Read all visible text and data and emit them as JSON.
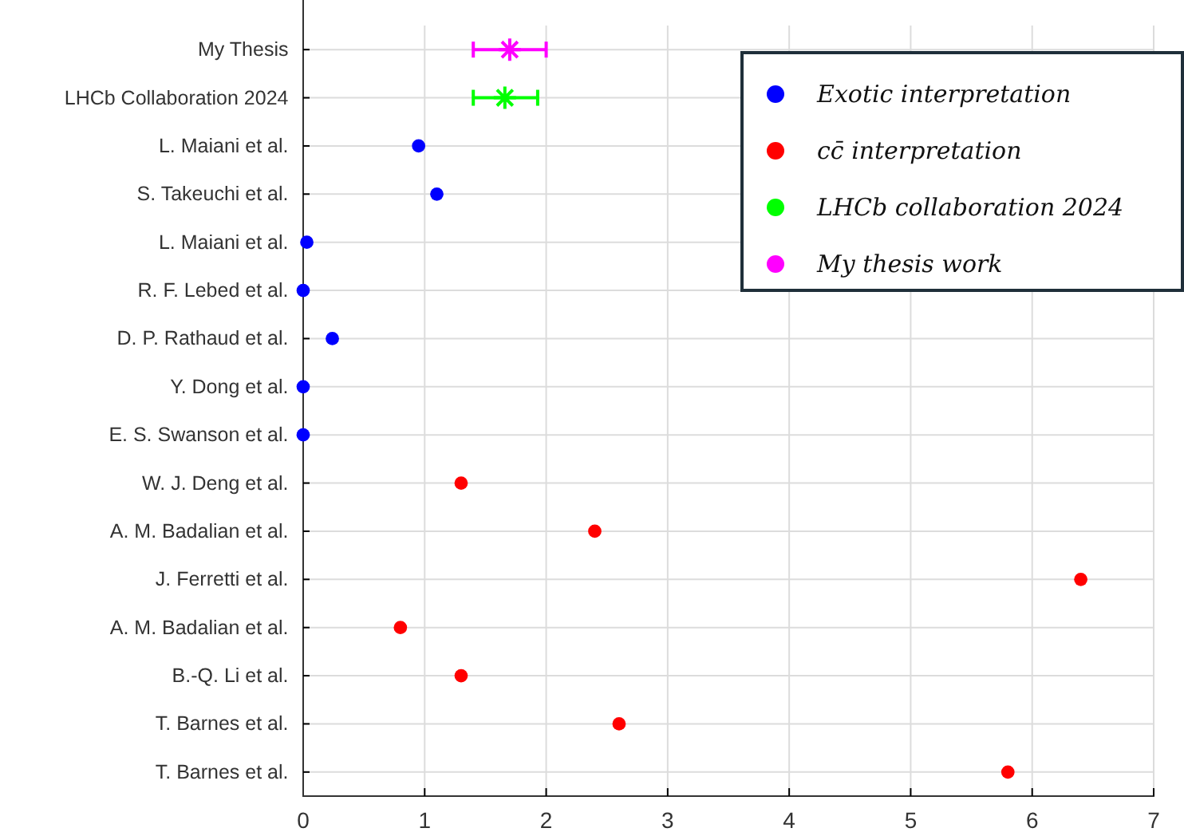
{
  "chart_data": {
    "type": "scatter",
    "orientation": "horizontal",
    "categories": [
      "My Thesis",
      "LHCb Collaboration 2024",
      "L. Maiani et al.",
      "S. Takeuchi et al.",
      "L. Maiani et al.",
      "R. F. Lebed et al.",
      "D. P. Rathaud et al.",
      "Y. Dong et al.",
      "E. S. Swanson et al.",
      "W. J. Deng et al.",
      "A. M. Badalian et al.",
      "J. Ferretti et al.",
      "A. M. Badalian et al.",
      "B.-Q. Li et al.",
      "T. Barnes et al.",
      "T. Barnes et al."
    ],
    "series": [
      {
        "name": "Exotic interpretation",
        "color": "#0000ff",
        "marker": "circle",
        "values": [
          null,
          null,
          0.95,
          1.1,
          0.03,
          0,
          0.24,
          0,
          0,
          null,
          null,
          null,
          null,
          null,
          null,
          null
        ]
      },
      {
        "name": "cc̄ interpretation",
        "color": "#ff0000",
        "marker": "circle",
        "values": [
          null,
          null,
          null,
          null,
          null,
          null,
          null,
          null,
          null,
          1.3,
          2.4,
          6.4,
          0.8,
          1.3,
          2.6,
          5.8
        ]
      },
      {
        "name": "LHCb collaboration 2024",
        "color": "#00ff00",
        "marker": "cross",
        "values": [
          null,
          1.66,
          null,
          null,
          null,
          null,
          null,
          null,
          null,
          null,
          null,
          null,
          null,
          null,
          null,
          null
        ],
        "errors": [
          null,
          [
            1.4,
            1.93
          ],
          null,
          null,
          null,
          null,
          null,
          null,
          null,
          null,
          null,
          null,
          null,
          null,
          null,
          null
        ]
      },
      {
        "name": "My thesis work",
        "color": "#ff00ff",
        "marker": "cross",
        "values": [
          1.7,
          null,
          null,
          null,
          null,
          null,
          null,
          null,
          null,
          null,
          null,
          null,
          null,
          null,
          null,
          null
        ],
        "errors": [
          [
            1.4,
            2.0
          ],
          null,
          null,
          null,
          null,
          null,
          null,
          null,
          null,
          null,
          null,
          null,
          null,
          null,
          null,
          null
        ]
      }
    ],
    "xlim": [
      0,
      7
    ],
    "xticks": [
      0,
      1,
      2,
      3,
      4,
      5,
      6,
      7
    ],
    "grid": true,
    "legend": "top right"
  }
}
